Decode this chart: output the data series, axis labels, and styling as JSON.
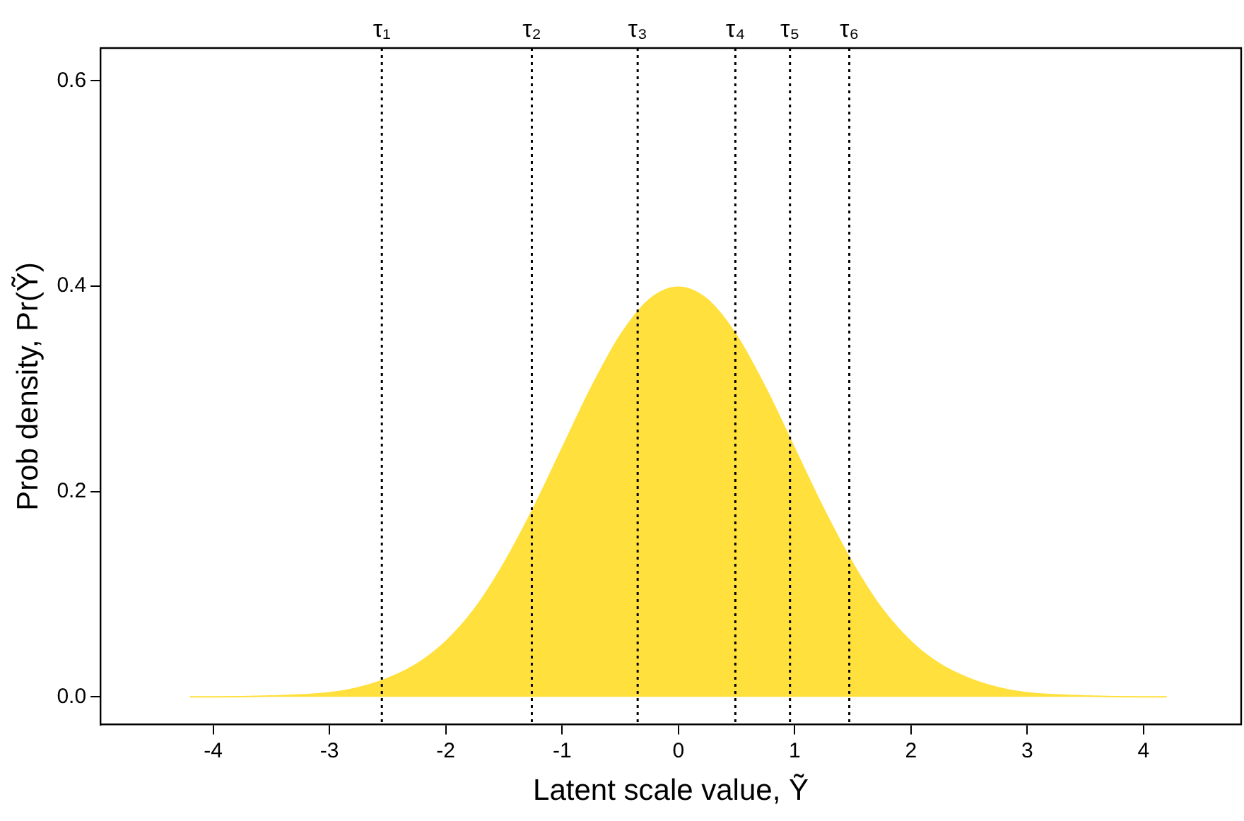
{
  "chart_data": {
    "type": "area",
    "xlabel": "Latent scale value, Ỹ",
    "ylabel": "Prob density, Pr(Ỹ)",
    "x": [
      -4.2,
      -4,
      -3.5,
      -3,
      -2.75,
      -2.5,
      -2.25,
      -2,
      -1.75,
      -1.5,
      -1.25,
      -1,
      -0.75,
      -0.5,
      -0.25,
      0,
      0.25,
      0.5,
      0.75,
      1,
      1.25,
      1.5,
      1.75,
      2,
      2.25,
      2.5,
      2.75,
      3,
      3.5,
      4,
      4.2
    ],
    "values": [
      0,
      0,
      0.001,
      0.004,
      0.009,
      0.018,
      0.032,
      0.054,
      0.086,
      0.13,
      0.183,
      0.242,
      0.301,
      0.352,
      0.387,
      0.399,
      0.387,
      0.352,
      0.301,
      0.242,
      0.183,
      0.13,
      0.086,
      0.054,
      0.032,
      0.018,
      0.009,
      0.004,
      0.001,
      0,
      0
    ],
    "color": "#ffe03c",
    "xlim": [
      -4.97,
      4.84
    ],
    "ylim": [
      -0.027,
      0.632
    ],
    "xticks": [
      -4,
      -3,
      -2,
      -1,
      0,
      1,
      2,
      3,
      4
    ],
    "yticks": [
      {
        "value": 0,
        "label": "0.0"
      },
      0.2,
      0.4,
      0.6
    ],
    "ref_lines": [
      {
        "axis": "x",
        "value": -2.55,
        "label": "τ₁",
        "line_style": "dotted"
      },
      {
        "axis": "x",
        "value": -1.26,
        "label": "τ₂",
        "line_style": "dotted"
      },
      {
        "axis": "x",
        "value": -0.35,
        "label": "τ₃",
        "line_style": "dotted"
      },
      {
        "axis": "x",
        "value": 0.49,
        "label": "τ₄",
        "line_style": "dotted"
      },
      {
        "axis": "x",
        "value": 0.96,
        "label": "τ₅",
        "line_style": "dotted"
      },
      {
        "axis": "x",
        "value": 1.47,
        "label": "τ₆",
        "line_style": "dotted"
      }
    ]
  }
}
